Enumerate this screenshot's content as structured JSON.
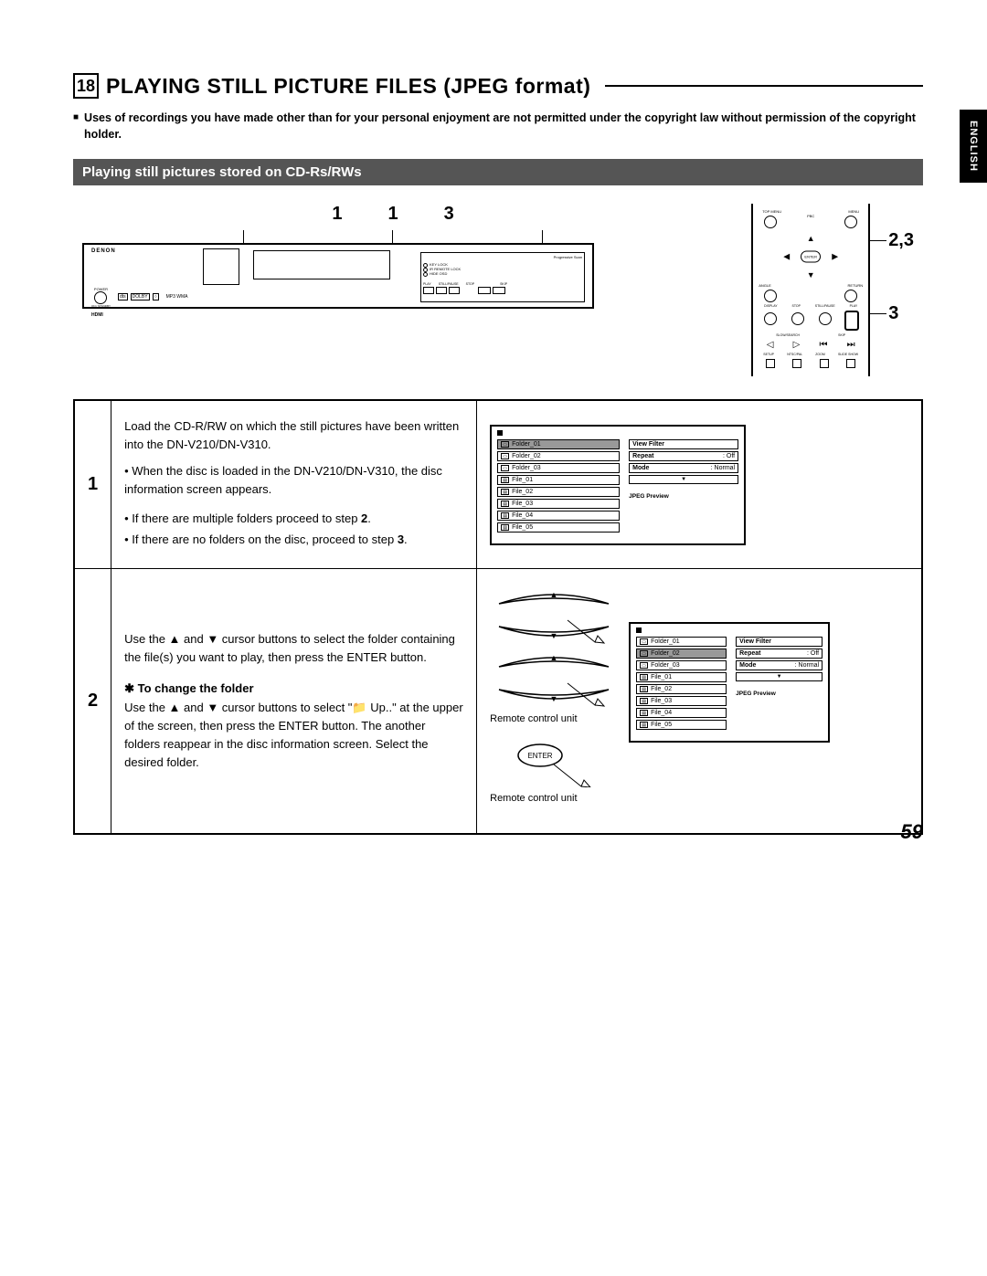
{
  "language_tab": "ENGLISH",
  "section": {
    "number": "18",
    "title": "PLAYING STILL PICTURE FILES (JPEG format)"
  },
  "note": "Uses of recordings you have made other than for your personal enjoyment are not permitted under the copyright law without permission of the copyright holder.",
  "sub_banner": "Playing still pictures stored on CD-Rs/RWs",
  "player_diagram": {
    "labels": [
      "1",
      "1",
      "3"
    ],
    "brand": "DENON",
    "badges": [
      "DVD",
      "MP3  WMA",
      "HDMI"
    ],
    "right_panel_text": "Progressive Scan",
    "indicators": [
      "KEY LOCK",
      "IR REMOTE LOCK",
      "HIDE OSD"
    ],
    "buttons": [
      "PLAY",
      "STILL/PAUSE",
      "STOP",
      "SKIP"
    ],
    "bottom_text": [
      "POWER",
      "ON / STANDBY",
      "KEY LOCK",
      "IR REMOTE LOCK",
      "HIDE OSD",
      "OPEN/CLOSE",
      "SHIFT",
      "REPEAT",
      "PLAY MODE"
    ]
  },
  "remote_diagram": {
    "callouts": [
      "2,3",
      "3"
    ],
    "top_labels": [
      "TOP MENU",
      "MENU",
      "PBC"
    ],
    "dpad": {
      "center": "ENTER",
      "left_label": "ANGLE",
      "right_label": "RETURN"
    },
    "row_labels": [
      "DISPLAY",
      "STOP",
      "STILL/PAUSE",
      "PLAY",
      "SLOW/SEARCH",
      "SKIP",
      "SETUP",
      "NTSC/PAL",
      "ZOOM",
      "SLIDE SHOW"
    ]
  },
  "steps": [
    {
      "num": "1",
      "body": "Load the CD-R/RW on which the still pictures have been written into the DN-V210/DN-V310.",
      "sub1": "When the disc is loaded in the DN-V210/DN-V310, the disc information screen appears.",
      "bullets": [
        {
          "t": "If there are multiple folders proceed to step ",
          "bold": "2",
          "tail": "."
        },
        {
          "t": "If there are no folders on the disc, proceed to step ",
          "bold": "3",
          "tail": "."
        }
      ],
      "screen": {
        "items": [
          {
            "type": "folder",
            "label": "Folder_01",
            "sel": true
          },
          {
            "type": "folder",
            "label": "Folder_02"
          },
          {
            "type": "folder",
            "label": "Folder_03"
          },
          {
            "type": "file",
            "label": "File_01"
          },
          {
            "type": "file",
            "label": "File_02"
          },
          {
            "type": "file",
            "label": "File_03"
          },
          {
            "type": "file",
            "label": "File_04"
          },
          {
            "type": "file",
            "label": "File_05"
          }
        ],
        "right": [
          {
            "k": "View Filter",
            "v": ""
          },
          {
            "k": "Repeat",
            "v": ": Off"
          },
          {
            "k": "Mode",
            "v": ": Normal"
          }
        ],
        "preview": "JPEG Preview"
      }
    },
    {
      "num": "2",
      "body": "Use the ▲ and ▼ cursor buttons to select the folder containing the file(s) you want to play, then press the ENTER button.",
      "sub_head": "To change the folder",
      "sub_body": "Use the ▲ and ▼ cursor buttons to select \"📁 Up..\" at the upper of the screen, then press the ENTER button. The another folders reappear in the disc information screen. Select the desired folder.",
      "vis_label": "Remote control unit",
      "enter_label": "ENTER",
      "screen": {
        "items": [
          {
            "type": "folder",
            "label": "Folder_01"
          },
          {
            "type": "folder",
            "label": "Folder_02",
            "sel": true
          },
          {
            "type": "folder",
            "label": "Folder_03"
          },
          {
            "type": "file",
            "label": "File_01"
          },
          {
            "type": "file",
            "label": "File_02"
          },
          {
            "type": "file",
            "label": "File_03"
          },
          {
            "type": "file",
            "label": "File_04"
          },
          {
            "type": "file",
            "label": "File_05"
          }
        ],
        "right": [
          {
            "k": "View Filter",
            "v": ""
          },
          {
            "k": "Repeat",
            "v": ": Off"
          },
          {
            "k": "Mode",
            "v": ": Normal"
          }
        ],
        "preview": "JPEG Preview"
      }
    }
  ],
  "page_number": "59"
}
